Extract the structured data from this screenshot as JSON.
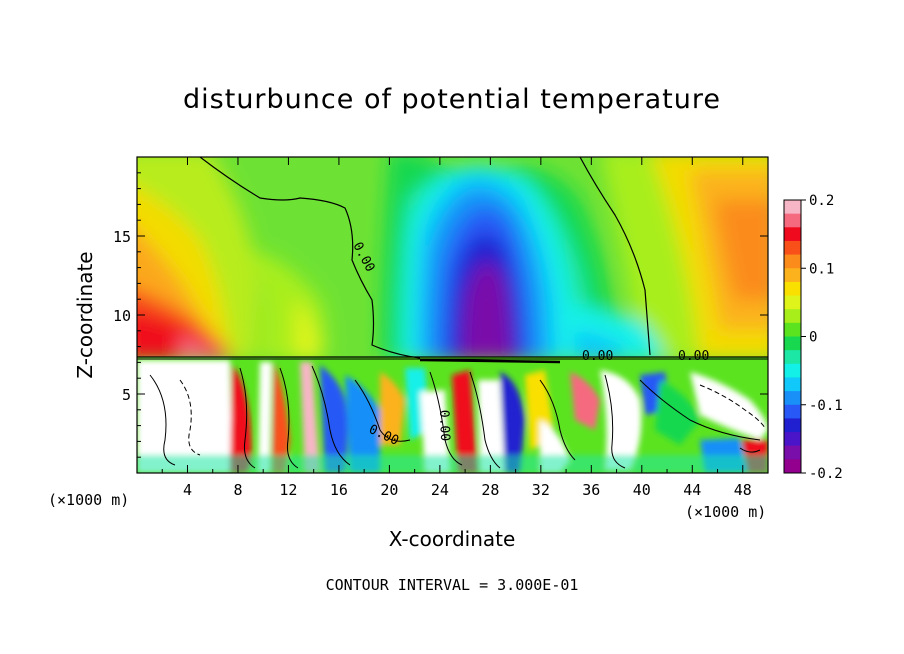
{
  "chart_data": {
    "type": "heatmap",
    "title": "disturbunce of potential temperature",
    "xlabel": "X-coordinate",
    "ylabel": "Z-coordinate",
    "x_unit": "(×1000 m)",
    "x_unit_right": "(×1000 m)",
    "xlim": [
      0,
      50
    ],
    "ylim": [
      0,
      20
    ],
    "x_ticks": [
      4,
      8,
      12,
      16,
      20,
      24,
      28,
      32,
      36,
      40,
      44,
      48
    ],
    "y_ticks": [
      5,
      10,
      15
    ],
    "colorbar": {
      "range": [
        -0.2,
        0.2
      ],
      "tick_labels": [
        "0.2",
        "0.1",
        "0",
        "-0.1",
        "-0.2"
      ],
      "tick_values": [
        0.2,
        0.1,
        0,
        -0.1,
        -0.2
      ],
      "colors": [
        "#f7b6c6",
        "#f56a7f",
        "#f00a1e",
        "#f9501a",
        "#fb8c1c",
        "#fbb21c",
        "#f9e000",
        "#dff41a",
        "#a8ee1a",
        "#5be320",
        "#18d850",
        "#1ce7a4",
        "#12f0e8",
        "#10c8fa",
        "#1890f8",
        "#2858f5",
        "#2020d0",
        "#4a14c8",
        "#7a0eaa",
        "#94008e"
      ]
    },
    "contour_labels": [
      "0.00",
      "0.00",
      "0.00",
      "0.00",
      "0.00"
    ],
    "contour_interval_text": "CONTOUR INTERVAL = 3.000E-01",
    "features": [
      {
        "name": "negative anomaly core",
        "x": 27.5,
        "z": 14,
        "value": -0.2
      },
      {
        "name": "positive anomaly lower-left",
        "x": 3,
        "z": 10,
        "value": 0.18
      },
      {
        "name": "positive anomaly right",
        "x": 47,
        "z": 15,
        "value": 0.11
      },
      {
        "name": "turbulent lower layer",
        "z_top": 7.3
      }
    ]
  }
}
